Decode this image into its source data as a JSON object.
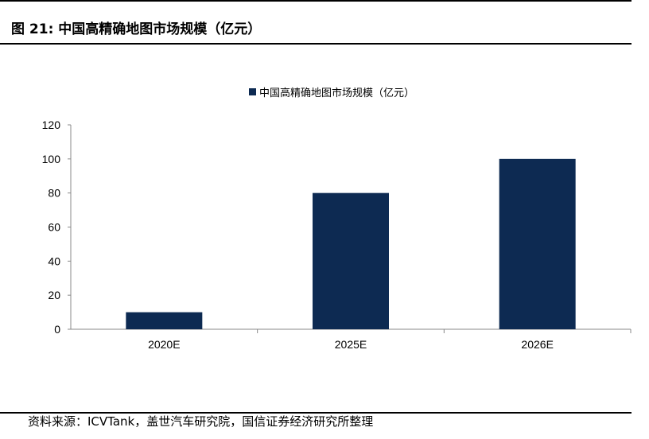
{
  "figure": {
    "title": "图 21:  中国高精确地图市场规模（亿元）",
    "source": "资料来源：ICVTank，盖世汽车研究院，国信证券经济研究所整理"
  },
  "colors": {
    "bar": "#0d2a52",
    "axis": "#888888",
    "text": "#000000",
    "rule": "#000000"
  },
  "chart_data": {
    "type": "bar",
    "categories": [
      "2020E",
      "2025E",
      "2026E"
    ],
    "series": [
      {
        "name": "中国高精确地图市场规模（亿元）",
        "values": [
          10,
          80,
          100
        ]
      }
    ],
    "ylim": [
      0,
      120
    ],
    "yticks": [
      0,
      20,
      40,
      60,
      80,
      100,
      120
    ],
    "grid": false,
    "legend": "top-center"
  }
}
